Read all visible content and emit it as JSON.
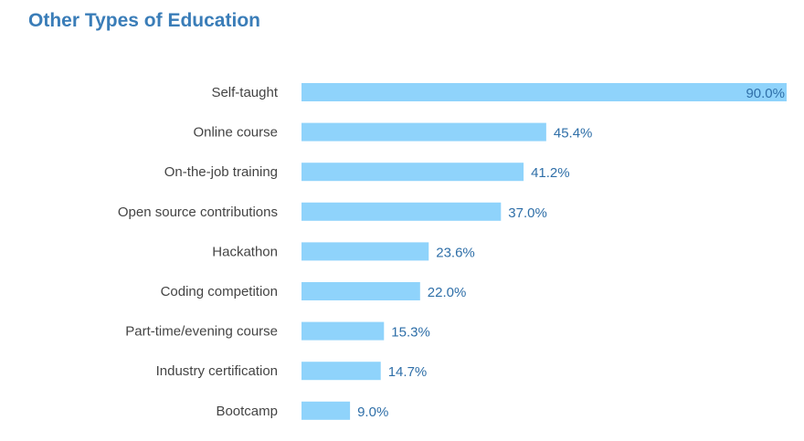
{
  "chart_data": {
    "type": "bar",
    "orientation": "horizontal",
    "title": "Other Types of Education",
    "xlabel": "",
    "ylabel": "",
    "xlim": [
      0,
      90
    ],
    "grid": false,
    "categories": [
      "Self-taught",
      "Online course",
      "On-the-job training",
      "Open source contributions",
      "Hackathon",
      "Coding competition",
      "Part-time/evening course",
      "Industry certification",
      "Bootcamp"
    ],
    "values": [
      90.0,
      45.4,
      41.2,
      37.0,
      23.6,
      22.0,
      15.3,
      14.7,
      9.0
    ],
    "value_labels": [
      "90.0%",
      "45.4%",
      "41.2%",
      "37.0%",
      "23.6%",
      "22.0%",
      "15.3%",
      "14.7%",
      "9.0%"
    ],
    "colors": {
      "bar": "#8fd3fb",
      "title": "#3a7db8",
      "value_label": "#2f6fa8",
      "category_label": "#444444"
    }
  }
}
